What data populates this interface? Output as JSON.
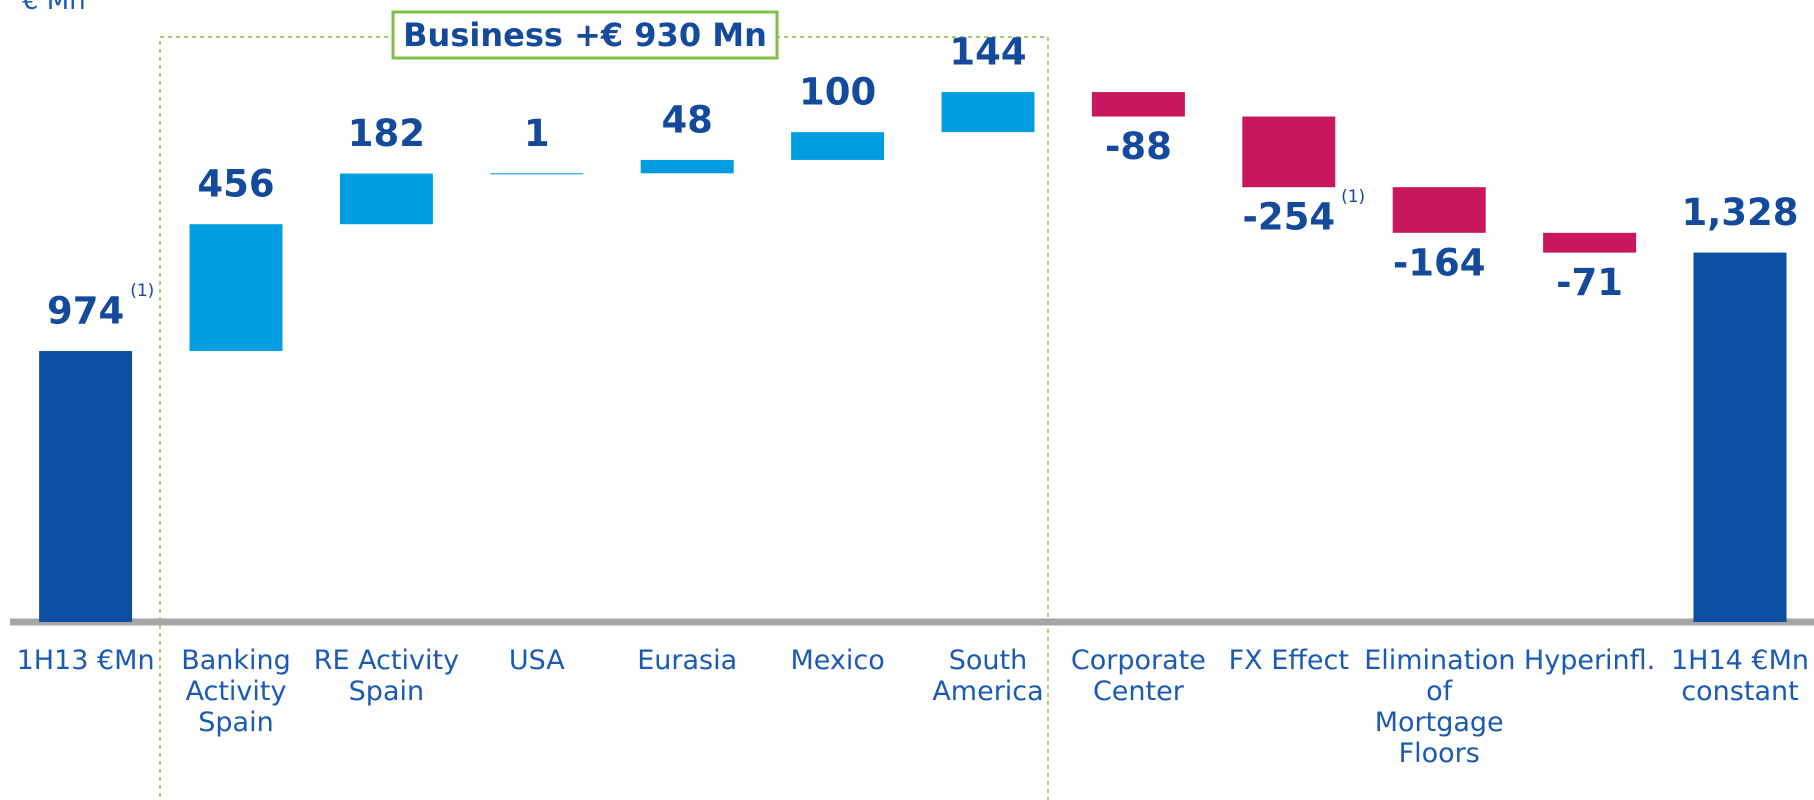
{
  "unit_label": "€ Mn",
  "chart_data": {
    "type": "waterfall",
    "annotation": "Business +€ 930 Mn",
    "categories": [
      "1H13 €Mn",
      "Banking Activity Spain",
      "RE Activity Spain",
      "USA",
      "Eurasia",
      "Mexico",
      "South America",
      "Corporate Center",
      "FX Effect",
      "Elimination of Mortgage Floors",
      "Hyperinfl.",
      "1H14 €Mn constant"
    ],
    "values": [
      974,
      456,
      182,
      1,
      48,
      100,
      144,
      -88,
      -254,
      -164,
      -71,
      1328
    ],
    "value_labels": [
      "974",
      "456",
      "182",
      "1",
      "48",
      "100",
      "144",
      "-88",
      "-254",
      "-164",
      "-71",
      "1,328"
    ],
    "value_notes": [
      "(1)",
      null,
      null,
      null,
      null,
      null,
      null,
      null,
      "(1)",
      null,
      null,
      null
    ],
    "colors": {
      "total": "#0b4fa0",
      "increase": "#009ee0",
      "decrease": "#c8175d"
    },
    "ylim": [
      0,
      2200
    ]
  }
}
